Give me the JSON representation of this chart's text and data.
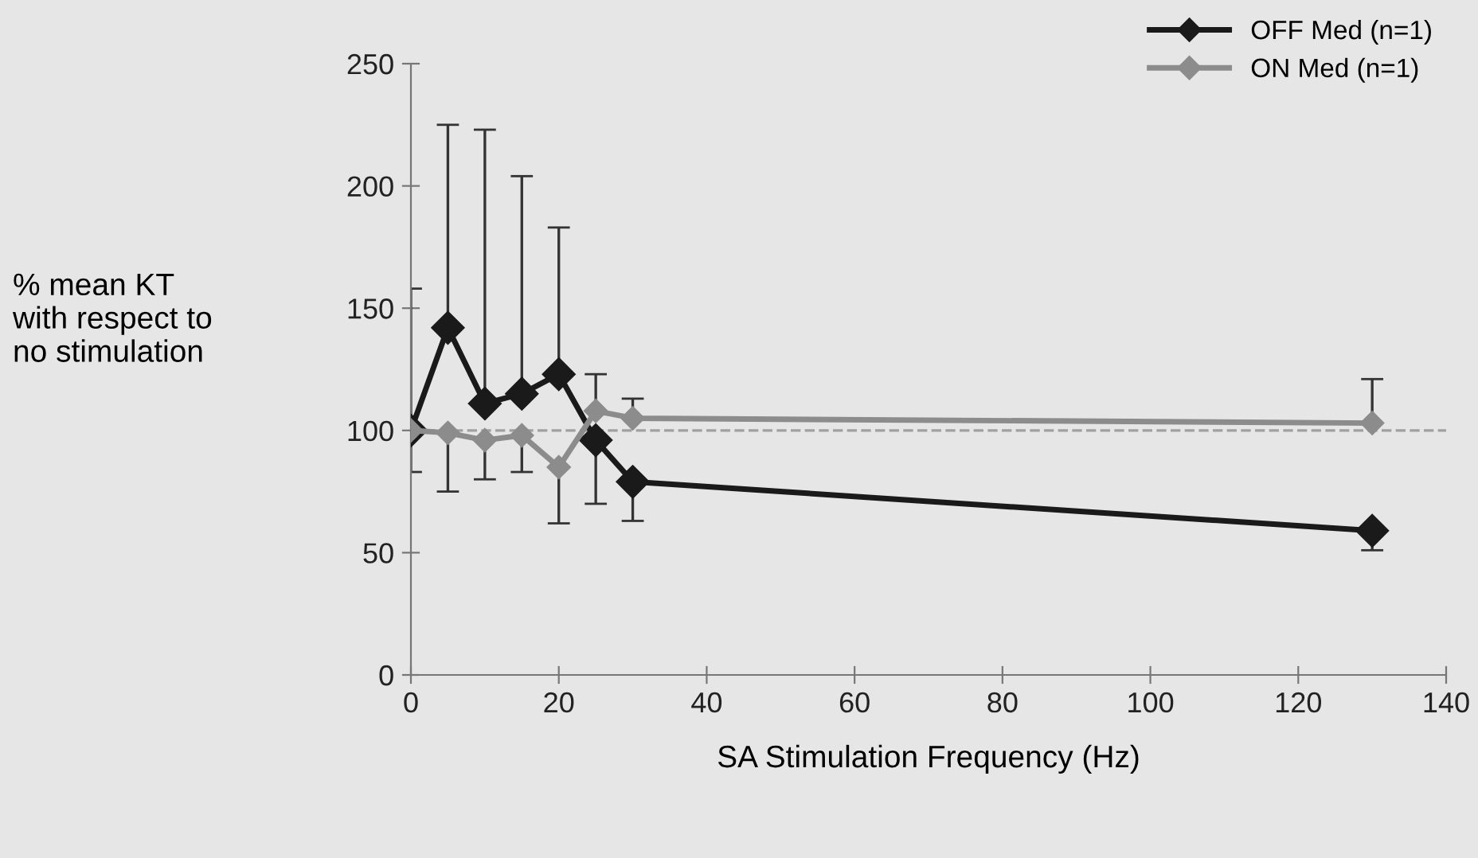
{
  "chart_data": {
    "type": "line",
    "xlabel": "SA Stimulation Frequency (Hz)",
    "ylabel": "% mean KT\nwith respect to\nno stimulation",
    "x": [
      0,
      5,
      10,
      15,
      20,
      25,
      30,
      130
    ],
    "series": [
      {
        "name": "OFF Med (n=1)",
        "color": "#1a1a1a",
        "values": [
          100,
          142,
          111,
          115,
          123,
          96,
          79,
          59
        ],
        "errors": [
          [
            100,
            158
          ],
          [
            142,
            225
          ],
          [
            111,
            223
          ],
          [
            115,
            204
          ],
          [
            123,
            183
          ],
          [
            70,
            96
          ],
          [
            63,
            79
          ],
          [
            51,
            59
          ]
        ]
      },
      {
        "name": "ON Med (n=1)",
        "color": "#8c8c8c",
        "values": [
          100,
          99,
          96,
          98,
          85,
          108,
          105,
          103
        ],
        "errors": [
          [
            83,
            100
          ],
          [
            75,
            99
          ],
          [
            80,
            96
          ],
          [
            83,
            98
          ],
          [
            62,
            85
          ],
          [
            108,
            123
          ],
          [
            105,
            113
          ],
          [
            103,
            121
          ]
        ]
      }
    ],
    "ref_lines": [
      {
        "axis": "y",
        "value": 100,
        "color": "#a0a0a0",
        "line_style": "dashed"
      }
    ],
    "xlim": [
      0,
      140
    ],
    "xticks": [
      0,
      20,
      40,
      60,
      80,
      100,
      120,
      140
    ],
    "ylim": [
      0,
      250
    ],
    "yticks": [
      0,
      50,
      100,
      150,
      200,
      250
    ],
    "marker": "diamond",
    "line_style": "solid",
    "grid": false,
    "legend": "top right"
  }
}
